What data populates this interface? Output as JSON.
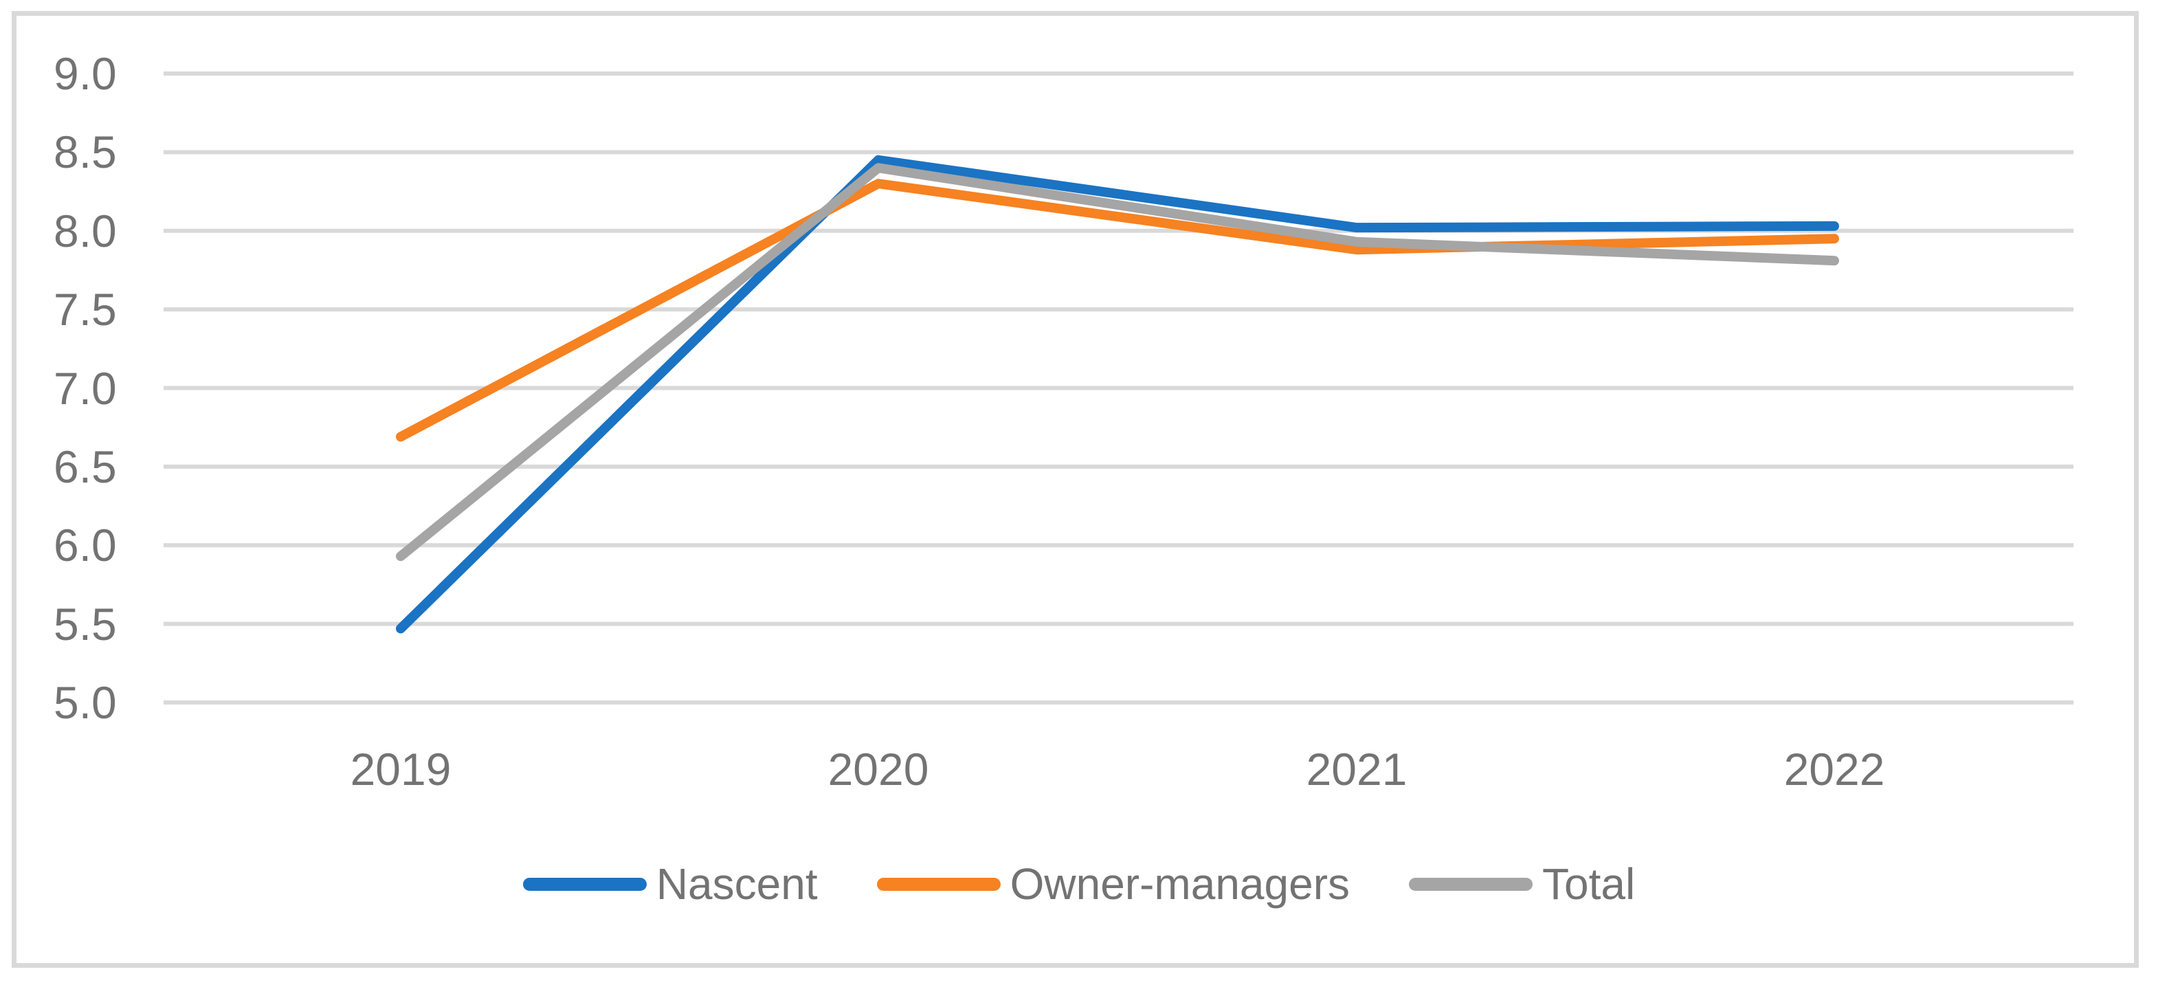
{
  "chart_data": {
    "type": "line",
    "categories": [
      "2019",
      "2020",
      "2021",
      "2022"
    ],
    "series": [
      {
        "name": "Nascent",
        "color": "#1b73c3",
        "values": [
          5.47,
          8.45,
          8.02,
          8.03
        ]
      },
      {
        "name": "Owner-managers",
        "color": "#f68221",
        "values": [
          6.69,
          8.3,
          7.88,
          7.95
        ]
      },
      {
        "name": "Total",
        "color": "#a5a5a5",
        "values": [
          5.93,
          8.4,
          7.93,
          7.81
        ]
      }
    ],
    "title": "",
    "xlabel": "",
    "ylabel": "",
    "ylim": [
      5.0,
      9.0
    ],
    "ytick_step": 0.5,
    "ytick_labels": [
      "5.0",
      "5.5",
      "6.0",
      "6.5",
      "7.0",
      "7.5",
      "8.0",
      "8.5",
      "9.0"
    ],
    "grid": true,
    "legend_position": "bottom",
    "colors": {
      "gridline": "#d9d9d9",
      "figure_border": "#d9d9d9",
      "tick_label": "#737373",
      "background": "#ffffff"
    }
  }
}
